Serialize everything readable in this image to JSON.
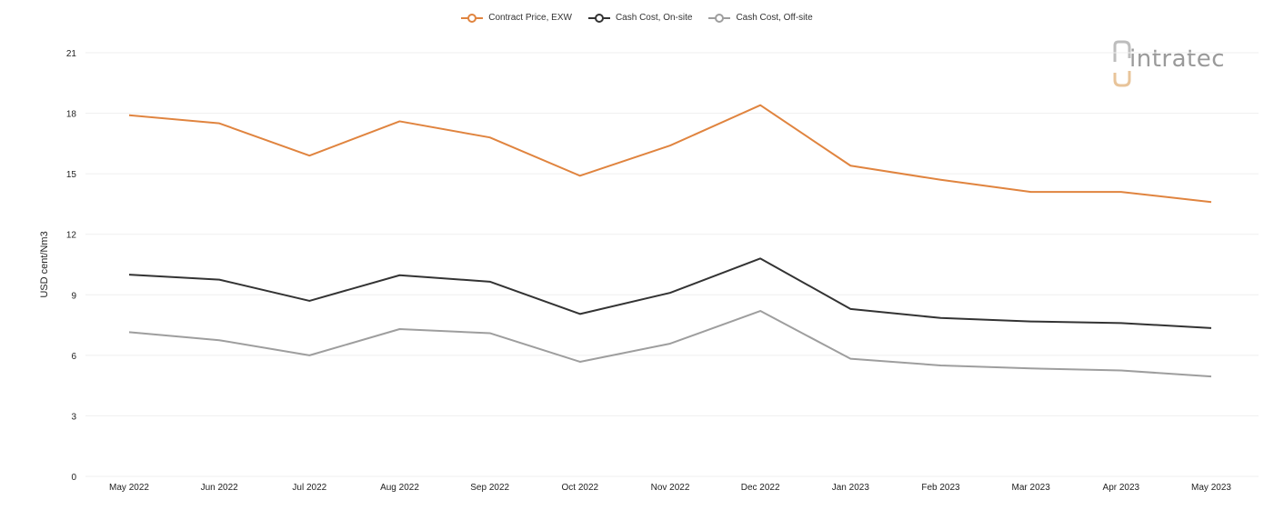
{
  "legend": {
    "items": [
      {
        "label": "Contract Price, EXW",
        "color": "#e0843f"
      },
      {
        "label": "Cash Cost, On-site",
        "color": "#333333"
      },
      {
        "label": "Cash Cost, Off-site",
        "color": "#9e9e9e"
      }
    ]
  },
  "logo": {
    "text": "intratec",
    "color": "#9a9a9a",
    "accent": "#e8c49a"
  },
  "chart_data": {
    "type": "line",
    "title": "",
    "xlabel": "",
    "ylabel": "USD cent/Nm3",
    "ylim": [
      0,
      21
    ],
    "yticks": [
      0,
      3,
      6,
      9,
      12,
      15,
      18,
      21
    ],
    "grid": true,
    "legend_position": "top-center",
    "categories": [
      "May 2022",
      "Jun 2022",
      "Jul 2022",
      "Aug 2022",
      "Sep 2022",
      "Oct 2022",
      "Nov 2022",
      "Dec 2022",
      "Jan 2023",
      "Feb 2023",
      "Mar 2023",
      "Apr 2023",
      "May 2023"
    ],
    "series": [
      {
        "name": "Contract Price, EXW",
        "color": "#e0843f",
        "values": [
          17.9,
          17.5,
          15.9,
          17.6,
          16.8,
          14.9,
          16.4,
          18.4,
          15.4,
          14.7,
          14.1,
          14.1,
          13.6
        ]
      },
      {
        "name": "Cash Cost, On-site",
        "color": "#333333",
        "values": [
          10.0,
          9.75,
          8.7,
          9.97,
          9.65,
          8.05,
          9.1,
          10.8,
          8.3,
          7.85,
          7.68,
          7.6,
          7.35
        ]
      },
      {
        "name": "Cash Cost, Off-site",
        "color": "#9e9e9e",
        "values": [
          7.15,
          6.75,
          6.0,
          7.3,
          7.1,
          5.68,
          6.58,
          8.2,
          5.83,
          5.5,
          5.35,
          5.25,
          4.95
        ]
      }
    ]
  }
}
